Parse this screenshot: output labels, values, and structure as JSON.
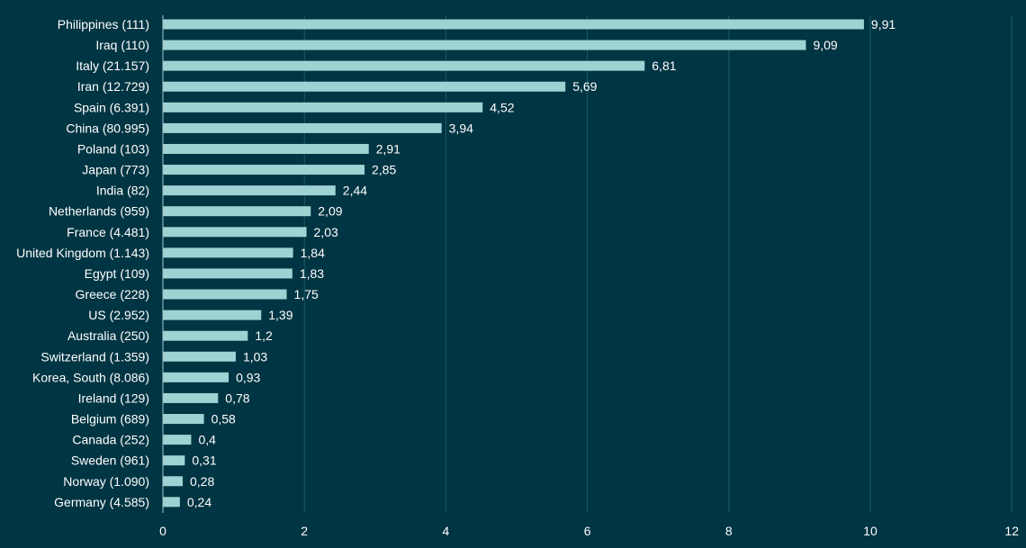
{
  "chart_data": {
    "type": "bar",
    "orientation": "horizontal",
    "title": "",
    "xlabel": "",
    "ylabel": "",
    "xlim": [
      0,
      12
    ],
    "x_ticks": [
      "0",
      "2",
      "4",
      "6",
      "8",
      "10",
      "12"
    ],
    "grid": "vertical",
    "legend": "none",
    "colors": {
      "background": "#003543",
      "bar": "#9fd3d3",
      "text": "#ffffff",
      "grid": "#1c5b64"
    },
    "categories": [
      "Philippines (111)",
      "Iraq (110)",
      "Italy (21.157)",
      "Iran (12.729)",
      "Spain (6.391)",
      "China (80.995)",
      "Poland (103)",
      "Japan (773)",
      "India (82)",
      "Netherlands (959)",
      "France (4.481)",
      "United Kingdom (1.143)",
      "Egypt (109)",
      "Greece (228)",
      "US (2.952)",
      "Australia (250)",
      "Switzerland (1.359)",
      "Korea, South (8.086)",
      "Ireland (129)",
      "Belgium (689)",
      "Canada (252)",
      "Sweden (961)",
      "Norway (1.090)",
      "Germany (4.585)"
    ],
    "values": [
      9.91,
      9.09,
      6.81,
      5.69,
      4.52,
      3.94,
      2.91,
      2.85,
      2.44,
      2.09,
      2.03,
      1.84,
      1.83,
      1.75,
      1.39,
      1.2,
      1.03,
      0.93,
      0.78,
      0.58,
      0.4,
      0.31,
      0.28,
      0.24
    ],
    "value_labels": [
      "9,91",
      "9,09",
      "6,81",
      "5,69",
      "4,52",
      "3,94",
      "2,91",
      "2,85",
      "2,44",
      "2,09",
      "2,03",
      "1,84",
      "1,83",
      "1,75",
      "1,39",
      "1,2",
      "1,03",
      "0,93",
      "0,78",
      "0,58",
      "0,4",
      "0,31",
      "0,28",
      "0,24"
    ]
  }
}
